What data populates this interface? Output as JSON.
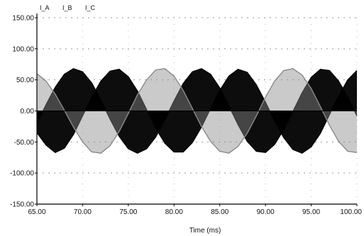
{
  "chart_data": {
    "type": "line",
    "title": "",
    "xlabel": "Time (ms)",
    "ylabel": "",
    "xlim": [
      65.0,
      100.0
    ],
    "ylim": [
      -150.0,
      150.0
    ],
    "x_ticks": [
      {
        "value": 65.0,
        "label": "65.00"
      },
      {
        "value": 70.0,
        "label": "70.00"
      },
      {
        "value": 75.0,
        "label": "75.00"
      },
      {
        "value": 80.0,
        "label": "80.00"
      },
      {
        "value": 85.0,
        "label": "85.00"
      },
      {
        "value": 90.0,
        "label": "90.00"
      },
      {
        "value": 95.0,
        "label": "95.00"
      },
      {
        "value": 100.0,
        "label": "100.00"
      }
    ],
    "y_ticks": [
      {
        "value": 150.0,
        "label": "150.00"
      },
      {
        "value": 100.0,
        "label": "100.00"
      },
      {
        "value": 50.0,
        "label": "50.00"
      },
      {
        "value": 0.0,
        "label": "0.00"
      },
      {
        "value": -50.0,
        "label": "-50.00"
      },
      {
        "value": -100.0,
        "label": "-100.00"
      },
      {
        "value": -150.0,
        "label": "-150.00"
      }
    ],
    "grid": "dotted",
    "legend_position": "top-left",
    "legend": [
      "I_A",
      "I_B",
      "I_C"
    ],
    "series": [
      {
        "name": "I_A",
        "color": "#000000",
        "style": "dense-fill",
        "x": [
          65,
          66,
          67,
          68,
          69,
          70,
          71,
          72,
          73,
          74,
          75,
          76,
          77,
          78,
          79,
          80,
          81,
          82,
          83,
          84,
          85,
          86,
          87,
          88,
          89,
          90,
          91,
          92,
          93,
          94,
          95,
          96,
          97,
          98,
          99,
          100
        ],
        "y": [
          -35,
          -55,
          -67,
          -60,
          -38,
          -8,
          22,
          48,
          64,
          67,
          55,
          32,
          2,
          -28,
          -52,
          -66,
          -66,
          -51,
          -26,
          4,
          33,
          56,
          67,
          62,
          42,
          14,
          -16,
          -43,
          -62,
          -68,
          -58,
          -36,
          -6,
          24,
          50,
          65
        ]
      },
      {
        "name": "I_B",
        "color": "#000000",
        "style": "dense-fill",
        "x": [
          65,
          66,
          67,
          68,
          69,
          70,
          71,
          72,
          73,
          74,
          75,
          76,
          77,
          78,
          79,
          80,
          81,
          82,
          83,
          84,
          85,
          86,
          87,
          88,
          89,
          90,
          91,
          92,
          93,
          94,
          95,
          96,
          97,
          98,
          99,
          100
        ],
        "y": [
          -20,
          10,
          38,
          59,
          68,
          63,
          45,
          17,
          -13,
          -41,
          -61,
          -68,
          -61,
          -42,
          -14,
          16,
          44,
          63,
          68,
          59,
          37,
          8,
          -22,
          -49,
          -65,
          -67,
          -54,
          -30,
          -1,
          29,
          54,
          67,
          65,
          48,
          22,
          -8
        ]
      },
      {
        "name": "I_C",
        "color": "#8a8a8a",
        "style": "sparse-fill",
        "x": [
          65,
          66,
          67,
          68,
          69,
          70,
          71,
          72,
          73,
          74,
          75,
          76,
          77,
          78,
          79,
          80,
          81,
          82,
          83,
          84,
          85,
          86,
          87,
          88,
          89,
          90,
          91,
          92,
          93,
          94,
          95,
          96,
          97,
          98,
          99,
          100
        ],
        "y": [
          60,
          48,
          27,
          1,
          -26,
          -50,
          -66,
          -68,
          -56,
          -33,
          -4,
          26,
          50,
          66,
          68,
          56,
          33,
          4,
          -25,
          -49,
          -65,
          -68,
          -57,
          -36,
          -8,
          22,
          48,
          65,
          68,
          58,
          36,
          7,
          -23,
          -49,
          -65,
          -67
        ]
      }
    ]
  }
}
